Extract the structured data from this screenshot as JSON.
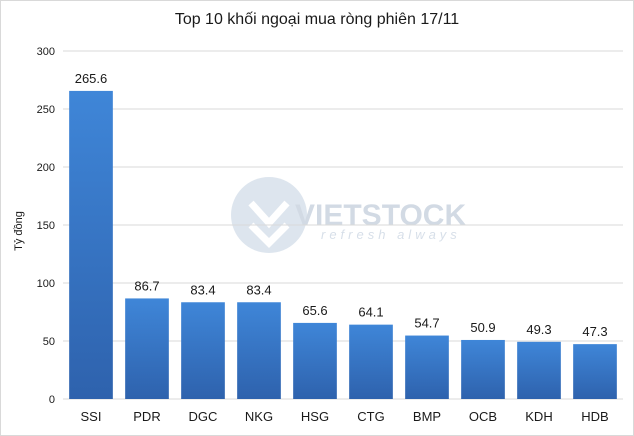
{
  "chart_data": {
    "type": "bar",
    "title": "Top 10 khối ngoại mua ròng phiên 17/11",
    "ylabel": "Tỷ đồng",
    "xlabel": "",
    "categories": [
      "SSI",
      "PDR",
      "DGC",
      "NKG",
      "HSG",
      "CTG",
      "BMP",
      "OCB",
      "KDH",
      "HDB"
    ],
    "values": [
      265.6,
      86.7,
      83.4,
      83.4,
      65.6,
      64.1,
      54.7,
      50.9,
      49.3,
      47.3
    ],
    "value_labels": [
      "265.6",
      "86.7",
      "83.4",
      "83.4",
      "65.6",
      "64.1",
      "54.7",
      "50.9",
      "49.3",
      "47.3"
    ],
    "ylim": [
      0,
      300
    ],
    "yticks": [
      "0",
      "50",
      "100",
      "150",
      "200",
      "250",
      "300"
    ],
    "grid": true,
    "legend": "none",
    "bar_color": "#3a7cd0"
  },
  "watermark": {
    "brand": "VIETSTOCK",
    "tagline": "refresh always"
  }
}
